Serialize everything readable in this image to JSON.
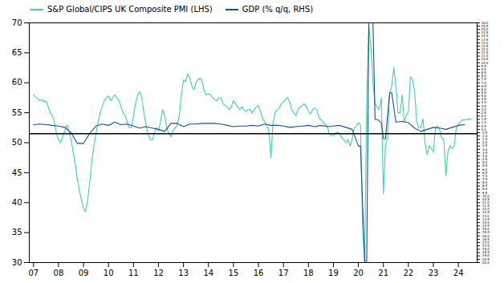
{
  "chart_data": {
    "type": "line",
    "legend": "upper left",
    "grid": false,
    "xlim": [
      2006.83,
      2024.75
    ],
    "xticks": [
      {
        "value": 2007,
        "label": "07"
      },
      {
        "value": 2008,
        "label": "08"
      },
      {
        "value": 2009,
        "label": "09"
      },
      {
        "value": 2010,
        "label": "10"
      },
      {
        "value": 2011,
        "label": "11"
      },
      {
        "value": 2012,
        "label": "12"
      },
      {
        "value": 2013,
        "label": "13"
      },
      {
        "value": 2014,
        "label": "14"
      },
      {
        "value": 2015,
        "label": "15"
      },
      {
        "value": 2016,
        "label": "16"
      },
      {
        "value": 2017,
        "label": "17"
      },
      {
        "value": 2018,
        "label": "18"
      },
      {
        "value": 2019,
        "label": "19"
      },
      {
        "value": 2020,
        "label": "20"
      },
      {
        "value": 2021,
        "label": "21"
      },
      {
        "value": 2022,
        "label": "22"
      },
      {
        "value": 2023,
        "label": "23"
      },
      {
        "value": 2024,
        "label": "24"
      }
    ],
    "ylim": [
      30,
      70
    ],
    "yticks": [
      30,
      35,
      40,
      45,
      50,
      55,
      60,
      65,
      70
    ],
    "y2lim": [
      -20.0,
      16.0
    ],
    "y2ticks": [
      {
        "value": -20,
        "label": "-20.0"
      },
      -19.5,
      {
        "value": -19,
        "label": "-19.0"
      },
      -18.5,
      {
        "value": -18,
        "label": "-18.0"
      },
      -17.5,
      {
        "value": -17,
        "label": "-17.0"
      },
      -16.5,
      {
        "value": -16,
        "label": "-16.0"
      },
      -15.5,
      {
        "value": -15,
        "label": "-15.0"
      },
      -14.5,
      {
        "value": -14,
        "label": "-14.0"
      },
      -13.5,
      {
        "value": -13,
        "label": "-13.0"
      },
      -12.5,
      {
        "value": -12,
        "label": "-12.0"
      },
      -11.5,
      {
        "value": -11,
        "label": "-11.0"
      },
      -10.5,
      {
        "value": -10,
        "label": "-10.0"
      },
      -9.5,
      {
        "value": -9,
        "label": "-9.0"
      },
      -8.5,
      {
        "value": -8,
        "label": "-8.0"
      },
      -7.5,
      {
        "value": -7,
        "label": "-7.0"
      },
      -6.5,
      {
        "value": -6,
        "label": "-6.0"
      },
      -5.5,
      {
        "value": -5,
        "label": "-5.0"
      },
      -4.5,
      {
        "value": -4,
        "label": "-4.0"
      },
      -3.5,
      {
        "value": -3,
        "label": "-3.0"
      },
      -2.5,
      {
        "value": -2,
        "label": "-2.0"
      },
      -1.5,
      {
        "value": -1,
        "label": "-1.0"
      },
      -0.5,
      {
        "value": 0,
        "label": "0.0"
      },
      0.5,
      {
        "value": 1,
        "label": "1.0"
      },
      1.5,
      {
        "value": 2,
        "label": "2.0"
      },
      2.5,
      {
        "value": 3,
        "label": "3.0"
      },
      3.5,
      {
        "value": 4,
        "label": "4.0"
      },
      4.5,
      {
        "value": 5,
        "label": "5.0"
      },
      5.5,
      {
        "value": 6,
        "label": "6.0"
      },
      6.5,
      {
        "value": 7,
        "label": "7.0"
      },
      7.5,
      {
        "value": 8,
        "label": "8.0"
      },
      8.5,
      {
        "value": 9,
        "label": "9.0"
      },
      9.5,
      {
        "value": 10,
        "label": "10.0"
      },
      10.5,
      {
        "value": 11,
        "label": "11.0"
      },
      11.5,
      {
        "value": 12,
        "label": "12.0"
      },
      12.5,
      {
        "value": 13,
        "label": "13.0"
      },
      13.5,
      {
        "value": 14,
        "label": "14.0"
      },
      14.5,
      {
        "value": 15,
        "label": "15.0"
      },
      15.5,
      {
        "value": 16,
        "label": "16.0"
      }
    ],
    "reference_line": {
      "value": 51.5,
      "color": "#000000"
    },
    "series": [
      {
        "name": "S&P Global/CIPS UK Composite PMI (LHS)",
        "color": "#3ECFBE",
        "x": [
          2007.0,
          2007.083,
          2007.167,
          2007.25,
          2007.333,
          2007.417,
          2007.5,
          2007.583,
          2007.667,
          2007.75,
          2007.833,
          2007.917,
          2008.0,
          2008.083,
          2008.167,
          2008.25,
          2008.333,
          2008.417,
          2008.5,
          2008.583,
          2008.667,
          2008.75,
          2008.833,
          2008.917,
          2009.0,
          2009.083,
          2009.167,
          2009.25,
          2009.333,
          2009.417,
          2009.5,
          2009.583,
          2009.667,
          2009.75,
          2009.833,
          2009.917,
          2010.0,
          2010.083,
          2010.167,
          2010.25,
          2010.333,
          2010.417,
          2010.5,
          2010.583,
          2010.667,
          2010.75,
          2010.833,
          2010.917,
          2011.0,
          2011.083,
          2011.167,
          2011.25,
          2011.333,
          2011.417,
          2011.5,
          2011.583,
          2011.667,
          2011.75,
          2011.833,
          2011.917,
          2012.0,
          2012.083,
          2012.167,
          2012.25,
          2012.333,
          2012.417,
          2012.5,
          2012.583,
          2012.667,
          2012.75,
          2012.833,
          2012.917,
          2013.0,
          2013.083,
          2013.167,
          2013.25,
          2013.333,
          2013.417,
          2013.5,
          2013.583,
          2013.667,
          2013.75,
          2013.833,
          2013.917,
          2014.0,
          2014.083,
          2014.167,
          2014.25,
          2014.333,
          2014.417,
          2014.5,
          2014.583,
          2014.667,
          2014.75,
          2014.833,
          2014.917,
          2015.0,
          2015.083,
          2015.167,
          2015.25,
          2015.333,
          2015.417,
          2015.5,
          2015.583,
          2015.667,
          2015.75,
          2015.833,
          2015.917,
          2016.0,
          2016.083,
          2016.167,
          2016.25,
          2016.333,
          2016.417,
          2016.5,
          2016.583,
          2016.667,
          2016.75,
          2016.833,
          2016.917,
          2017.0,
          2017.083,
          2017.167,
          2017.25,
          2017.333,
          2017.417,
          2017.5,
          2017.583,
          2017.667,
          2017.75,
          2017.833,
          2017.917,
          2018.0,
          2018.083,
          2018.167,
          2018.25,
          2018.333,
          2018.417,
          2018.5,
          2018.583,
          2018.667,
          2018.75,
          2018.833,
          2018.917,
          2019.0,
          2019.083,
          2019.167,
          2019.25,
          2019.333,
          2019.417,
          2019.5,
          2019.583,
          2019.667,
          2019.75,
          2019.833,
          2019.917,
          2020.0,
          2020.083,
          2020.167,
          2020.25,
          2020.333,
          2020.417,
          2020.5,
          2020.583,
          2020.667,
          2020.75,
          2020.833,
          2020.917,
          2021.0,
          2021.083,
          2021.167,
          2021.25,
          2021.333,
          2021.417,
          2021.5,
          2021.583,
          2021.667,
          2021.75,
          2021.833,
          2021.917,
          2022.0,
          2022.083,
          2022.167,
          2022.25,
          2022.333,
          2022.417,
          2022.5,
          2022.583,
          2022.667,
          2022.75,
          2022.833,
          2022.917,
          2023.0,
          2023.083,
          2023.167,
          2023.25,
          2023.333,
          2023.417,
          2023.5,
          2023.583,
          2023.667,
          2023.75,
          2023.833,
          2023.917,
          2024.0,
          2024.083,
          2024.167,
          2024.25,
          2024.5
        ],
        "values": [
          58.0,
          57.6,
          57.4,
          57.0,
          57.2,
          56.8,
          57.0,
          56.0,
          55.0,
          54.5,
          53.5,
          51.5,
          50.5,
          50.0,
          51.0,
          52.0,
          53.0,
          52.0,
          50.5,
          48.5,
          46.5,
          44.0,
          42.0,
          40.5,
          39.0,
          38.5,
          40.5,
          43.5,
          47.0,
          49.5,
          51.5,
          53.5,
          55.0,
          56.0,
          57.0,
          57.5,
          57.8,
          57.0,
          57.5,
          58.0,
          57.5,
          57.0,
          56.0,
          55.0,
          54.5,
          53.5,
          52.5,
          52.5,
          54.5,
          56.5,
          58.0,
          58.5,
          57.5,
          55.0,
          53.0,
          51.5,
          50.5,
          50.5,
          51.5,
          52.5,
          52.0,
          53.5,
          55.5,
          54.5,
          52.5,
          51.5,
          51.0,
          52.0,
          52.5,
          53.0,
          54.5,
          58.0,
          60.5,
          60.2,
          61.5,
          60.8,
          59.5,
          58.8,
          60.0,
          60.5,
          60.8,
          60.2,
          58.5,
          58.0,
          58.2,
          58.0,
          57.5,
          57.2,
          57.0,
          57.5,
          57.5,
          56.5,
          56.2,
          56.0,
          55.5,
          56.0,
          57.0,
          56.5,
          56.0,
          55.5,
          56.0,
          55.5,
          55.2,
          55.5,
          55.5,
          55.0,
          55.5,
          56.0,
          56.2,
          55.2,
          54.0,
          53.5,
          52.8,
          52.0,
          47.5,
          53.3,
          55.0,
          55.5,
          55.8,
          56.5,
          56.8,
          57.2,
          57.5,
          56.8,
          55.5,
          55.0,
          54.5,
          55.5,
          56.0,
          56.2,
          56.5,
          56.0,
          55.2,
          54.8,
          55.5,
          55.8,
          55.5,
          54.2,
          53.8,
          53.5,
          53.0,
          52.8,
          51.5,
          51.2,
          51.2,
          51.5,
          51.8,
          51.5,
          50.8,
          50.5,
          50.0,
          50.5,
          49.5,
          50.5,
          52.5,
          52.8,
          53.3,
          53.0,
          36.0,
          30.0,
          57.5,
          69.5,
          66.0,
          60.0,
          56.5,
          56.0,
          55.5,
          57.5,
          41.5,
          49.5,
          51.0,
          58.0,
          59.5,
          62.5,
          59.5,
          55.0,
          55.0,
          58.0,
          53.5,
          54.5,
          55.2,
          61.0,
          60.5,
          58.5,
          53.5,
          52.5,
          52.5,
          54.0,
          50.0,
          48.0,
          49.5,
          49.0,
          48.5,
          52.5,
          52.8,
          52.2,
          50.8,
          50.5,
          44.5,
          48.5,
          49.5,
          49.0,
          49.5,
          52.5,
          53.0,
          53.5,
          53.8,
          53.8,
          54.0
        ]
      },
      {
        "name": "GDP (% q/q, RHS)",
        "color": "#1B4F9B",
        "axis": "y2",
        "x": [
          2007.0,
          2007.25,
          2007.5,
          2007.75,
          2008.0,
          2008.25,
          2008.5,
          2008.75,
          2009.0,
          2009.25,
          2009.5,
          2009.75,
          2010.0,
          2010.25,
          2010.5,
          2010.75,
          2011.0,
          2011.25,
          2011.5,
          2011.75,
          2012.0,
          2012.25,
          2012.5,
          2012.75,
          2013.0,
          2013.25,
          2013.5,
          2013.75,
          2014.0,
          2014.25,
          2014.5,
          2014.75,
          2015.0,
          2015.25,
          2015.5,
          2015.75,
          2016.0,
          2016.25,
          2016.5,
          2016.75,
          2017.0,
          2017.25,
          2017.5,
          2017.75,
          2018.0,
          2018.25,
          2018.5,
          2018.75,
          2019.0,
          2019.25,
          2019.5,
          2019.75,
          2020.0,
          2020.083,
          2020.25,
          2020.333,
          2020.417,
          2020.5,
          2020.583,
          2020.667,
          2020.75,
          2020.917,
          2021.0,
          2021.083,
          2021.25,
          2021.333,
          2021.5,
          2021.75,
          2022.0,
          2022.25,
          2022.5,
          2022.75,
          2023.0,
          2023.25,
          2023.5,
          2023.75,
          2024.0,
          2024.25
        ],
        "values": [
          0.7,
          0.8,
          0.7,
          0.6,
          0.5,
          0.3,
          -0.5,
          -2.1,
          -2.1,
          -0.6,
          0.5,
          0.8,
          0.6,
          1.1,
          0.7,
          0.8,
          0.5,
          0.2,
          0.4,
          0.2,
          0.0,
          -0.3,
          0.9,
          0.9,
          0.4,
          0.8,
          0.8,
          0.9,
          0.9,
          0.9,
          0.8,
          0.6,
          0.4,
          0.5,
          0.5,
          0.6,
          0.5,
          0.8,
          0.6,
          0.6,
          0.5,
          0.3,
          0.4,
          0.5,
          0.6,
          0.4,
          0.6,
          0.4,
          0.5,
          0.6,
          0.3,
          0.0,
          -2.5,
          -2.5,
          -19.8,
          -19.8,
          16.0,
          16.0,
          16.0,
          1.5,
          1.5,
          1.0,
          -1.4,
          -1.4,
          5.5,
          5.5,
          1.1,
          1.2,
          1.0,
          0.2,
          -0.3,
          0.0,
          0.3,
          0.2,
          0.0,
          0.3,
          0.6,
          0.7
        ]
      }
    ]
  }
}
